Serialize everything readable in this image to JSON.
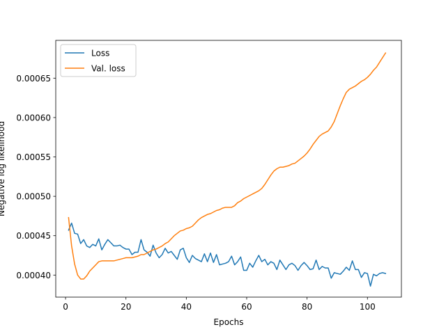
{
  "chart_data": {
    "type": "line",
    "title": "",
    "xlabel": "Epochs",
    "ylabel": "Negative log likelihood",
    "xlim": [
      -3.25,
      111.25
    ],
    "ylim": [
      0.000372,
      0.000698
    ],
    "xticks": [
      0,
      20,
      40,
      60,
      80,
      100
    ],
    "xtick_labels": [
      "0",
      "20",
      "40",
      "60",
      "80",
      "100"
    ],
    "yticks": [
      0.0004,
      0.00045,
      0.0005,
      0.00055,
      0.0006,
      0.00065
    ],
    "ytick_labels": [
      "0.00040",
      "0.00045",
      "0.00050",
      "0.00055",
      "0.00060",
      "0.00065"
    ],
    "grid": false,
    "legend_position": "top-left",
    "x": [
      1,
      2,
      3,
      4,
      5,
      6,
      7,
      8,
      9,
      10,
      11,
      12,
      13,
      14,
      15,
      16,
      17,
      18,
      19,
      20,
      21,
      22,
      23,
      24,
      25,
      26,
      27,
      28,
      29,
      30,
      31,
      32,
      33,
      34,
      35,
      36,
      37,
      38,
      39,
      40,
      41,
      42,
      43,
      44,
      45,
      46,
      47,
      48,
      49,
      50,
      51,
      52,
      53,
      54,
      55,
      56,
      57,
      58,
      59,
      60,
      61,
      62,
      63,
      64,
      65,
      66,
      67,
      68,
      69,
      70,
      71,
      72,
      73,
      74,
      75,
      76,
      77,
      78,
      79,
      80,
      81,
      82,
      83,
      84,
      85,
      86,
      87,
      88,
      89,
      90,
      91,
      92,
      93,
      94,
      95,
      96,
      97,
      98,
      99,
      100,
      101,
      102,
      103,
      104,
      105,
      106
    ],
    "series": [
      {
        "name": "Loss",
        "color": "#1f77b4",
        "values": [
          0.000457,
          0.000466,
          0.000453,
          0.000452,
          0.00044,
          0.000445,
          0.000437,
          0.000435,
          0.000439,
          0.000437,
          0.000446,
          0.000432,
          0.000439,
          0.000445,
          0.000441,
          0.000437,
          0.000437,
          0.000438,
          0.000435,
          0.000433,
          0.000433,
          0.000426,
          0.000429,
          0.000429,
          0.000445,
          0.000432,
          0.000429,
          0.000424,
          0.000438,
          0.000428,
          0.000422,
          0.000426,
          0.000434,
          0.000428,
          0.00043,
          0.000425,
          0.00042,
          0.000432,
          0.000434,
          0.000422,
          0.000416,
          0.000425,
          0.000421,
          0.000419,
          0.000417,
          0.000427,
          0.000417,
          0.000428,
          0.000416,
          0.000426,
          0.000413,
          0.000414,
          0.000415,
          0.000417,
          0.000424,
          0.000413,
          0.000417,
          0.000423,
          0.000406,
          0.000406,
          0.000415,
          0.00041,
          0.000418,
          0.000425,
          0.000417,
          0.00042,
          0.000413,
          0.000417,
          0.000415,
          0.000407,
          0.000419,
          0.000413,
          0.000407,
          0.000413,
          0.000415,
          0.000412,
          0.000406,
          0.000412,
          0.000416,
          0.000412,
          0.000407,
          0.000408,
          0.000419,
          0.000407,
          0.000411,
          0.000409,
          0.000409,
          0.000396,
          0.000403,
          0.000402,
          0.000401,
          0.000405,
          0.00041,
          0.000406,
          0.000418,
          0.000407,
          0.000407,
          0.000397,
          0.000403,
          0.000402,
          0.000386,
          0.000401,
          0.000399,
          0.000402,
          0.000403,
          0.000402
        ]
      },
      {
        "name": "Val. loss",
        "color": "#ff7f0e",
        "values": [
          0.000473,
          0.000437,
          0.000414,
          0.0004,
          0.000395,
          0.000395,
          0.000399,
          0.000405,
          0.000409,
          0.000413,
          0.000417,
          0.000418,
          0.000418,
          0.000418,
          0.000418,
          0.000418,
          0.000419,
          0.00042,
          0.000421,
          0.000422,
          0.000422,
          0.000422,
          0.000423,
          0.000424,
          0.000426,
          0.000426,
          0.000428,
          0.00043,
          0.000432,
          0.000433,
          0.000435,
          0.000437,
          0.00044,
          0.000442,
          0.000446,
          0.00045,
          0.000453,
          0.000456,
          0.000457,
          0.000459,
          0.00046,
          0.000462,
          0.000466,
          0.00047,
          0.000473,
          0.000475,
          0.000477,
          0.000478,
          0.00048,
          0.000482,
          0.000483,
          0.000485,
          0.000486,
          0.000486,
          0.000486,
          0.000488,
          0.000492,
          0.000494,
          0.000497,
          0.000499,
          0.000501,
          0.000503,
          0.000505,
          0.000507,
          0.00051,
          0.000515,
          0.000521,
          0.000527,
          0.000532,
          0.000535,
          0.000537,
          0.000537,
          0.000538,
          0.000539,
          0.000541,
          0.000542,
          0.000545,
          0.000548,
          0.000551,
          0.000555,
          0.00056,
          0.000566,
          0.000571,
          0.000576,
          0.000579,
          0.000581,
          0.000583,
          0.000588,
          0.000595,
          0.000605,
          0.000615,
          0.000624,
          0.000632,
          0.000636,
          0.000638,
          0.00064,
          0.000643,
          0.000646,
          0.000648,
          0.000651,
          0.000655,
          0.00066,
          0.000664,
          0.00067,
          0.000676,
          0.000682
        ]
      }
    ]
  }
}
